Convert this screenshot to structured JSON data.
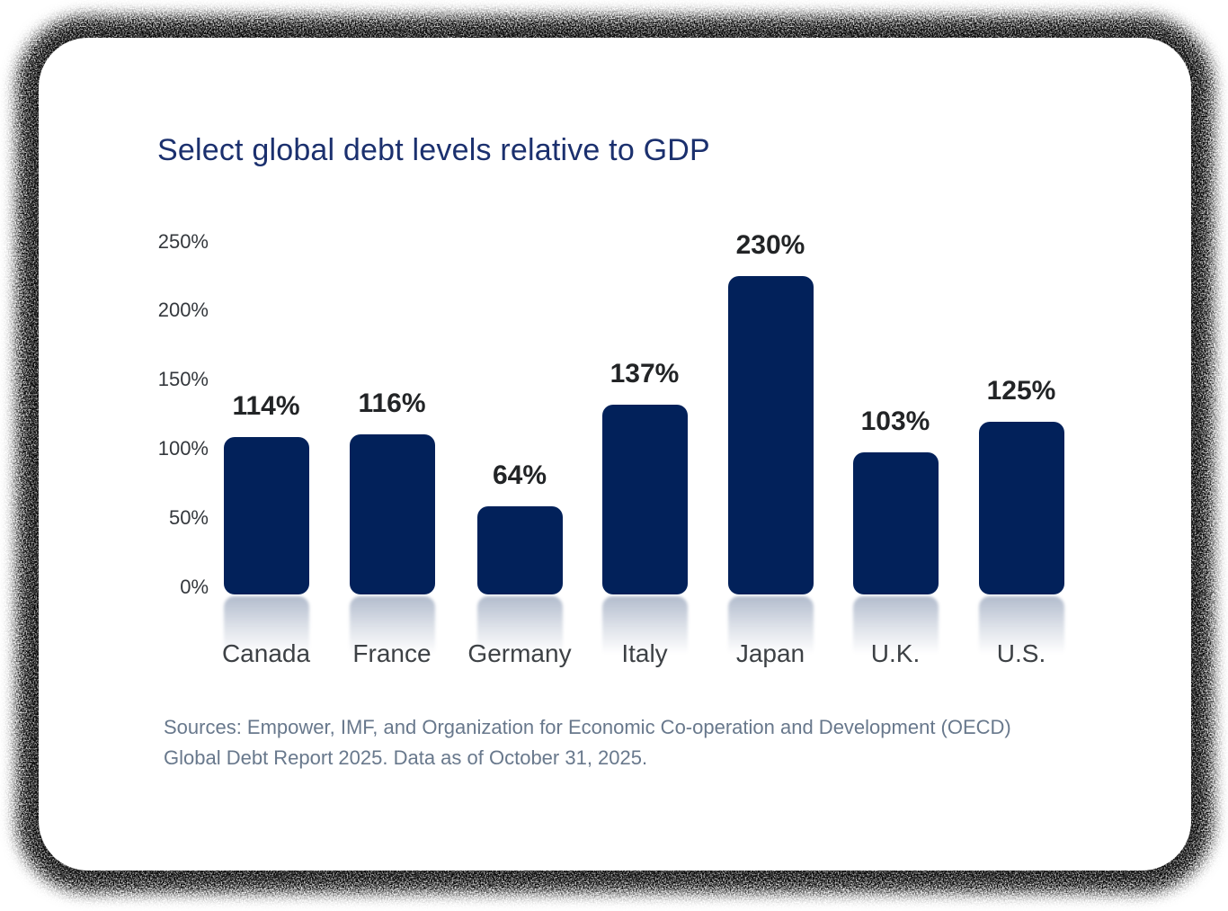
{
  "card": {
    "background": "#ffffff",
    "border_effect": "grainy-speckled-shadow"
  },
  "chart_data": {
    "type": "bar",
    "title": "Select global debt levels relative to GDP",
    "categories": [
      "Canada",
      "France",
      "Germany",
      "Italy",
      "Japan",
      "U.K.",
      "U.S."
    ],
    "values": [
      114,
      116,
      64,
      137,
      230,
      103,
      125
    ],
    "value_labels": [
      "114%",
      "116%",
      "64%",
      "137%",
      "230%",
      "103%",
      "125%"
    ],
    "xlabel": "",
    "ylabel": "",
    "ylim": [
      0,
      250
    ],
    "yticks_percent": [
      0,
      50,
      100,
      150,
      200,
      250
    ],
    "ytick_labels": [
      "0%",
      "50%",
      "100%",
      "150%",
      "200%",
      "250%"
    ],
    "grid": false,
    "legend": false,
    "bar_style": "rounded corners with faded reflection below baseline",
    "bar_color": "#02215a",
    "title_color": "#1b306e",
    "value_label_color": "#222426",
    "category_label_color": "#3d4145",
    "tick_label_color": "#34383d",
    "source_color": "#68788c"
  },
  "footer": {
    "source_line1": "Sources: Empower, IMF, and Organization for Economic Co-operation and Development (OECD)",
    "source_line2": "Global Debt Report 2025. Data as of October 31, 2025."
  }
}
